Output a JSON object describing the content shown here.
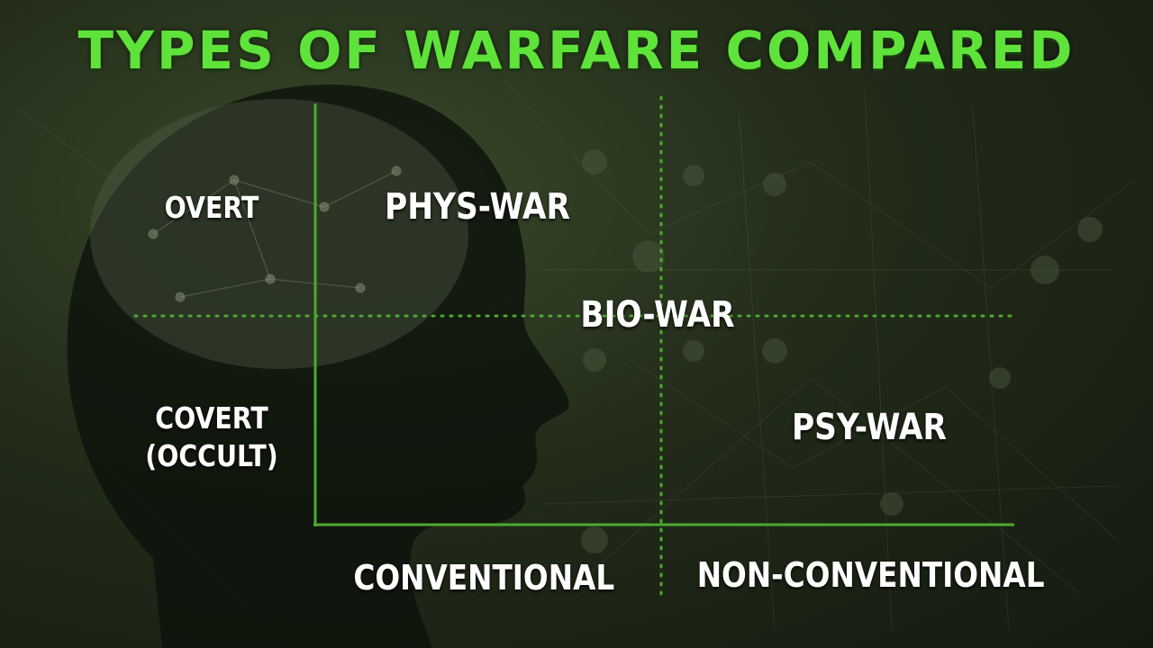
{
  "title": "TYPES OF WARFARE COMPARED",
  "rows": {
    "top": "OVERT",
    "bottom_line1": "COVERT",
    "bottom_line2": "(OCCULT)"
  },
  "columns": {
    "left": "CONVENTIONAL",
    "right": "NON-CONVENTIONAL"
  },
  "cells": {
    "top_left": "PHYS-WAR",
    "center": "BIO-WAR",
    "bottom_right": "PSY-WAR"
  },
  "colors": {
    "accent": "#5fe33a",
    "axis": "#4ea832",
    "text": "#ffffff"
  },
  "background_image": "human-head-brain-silhouette"
}
